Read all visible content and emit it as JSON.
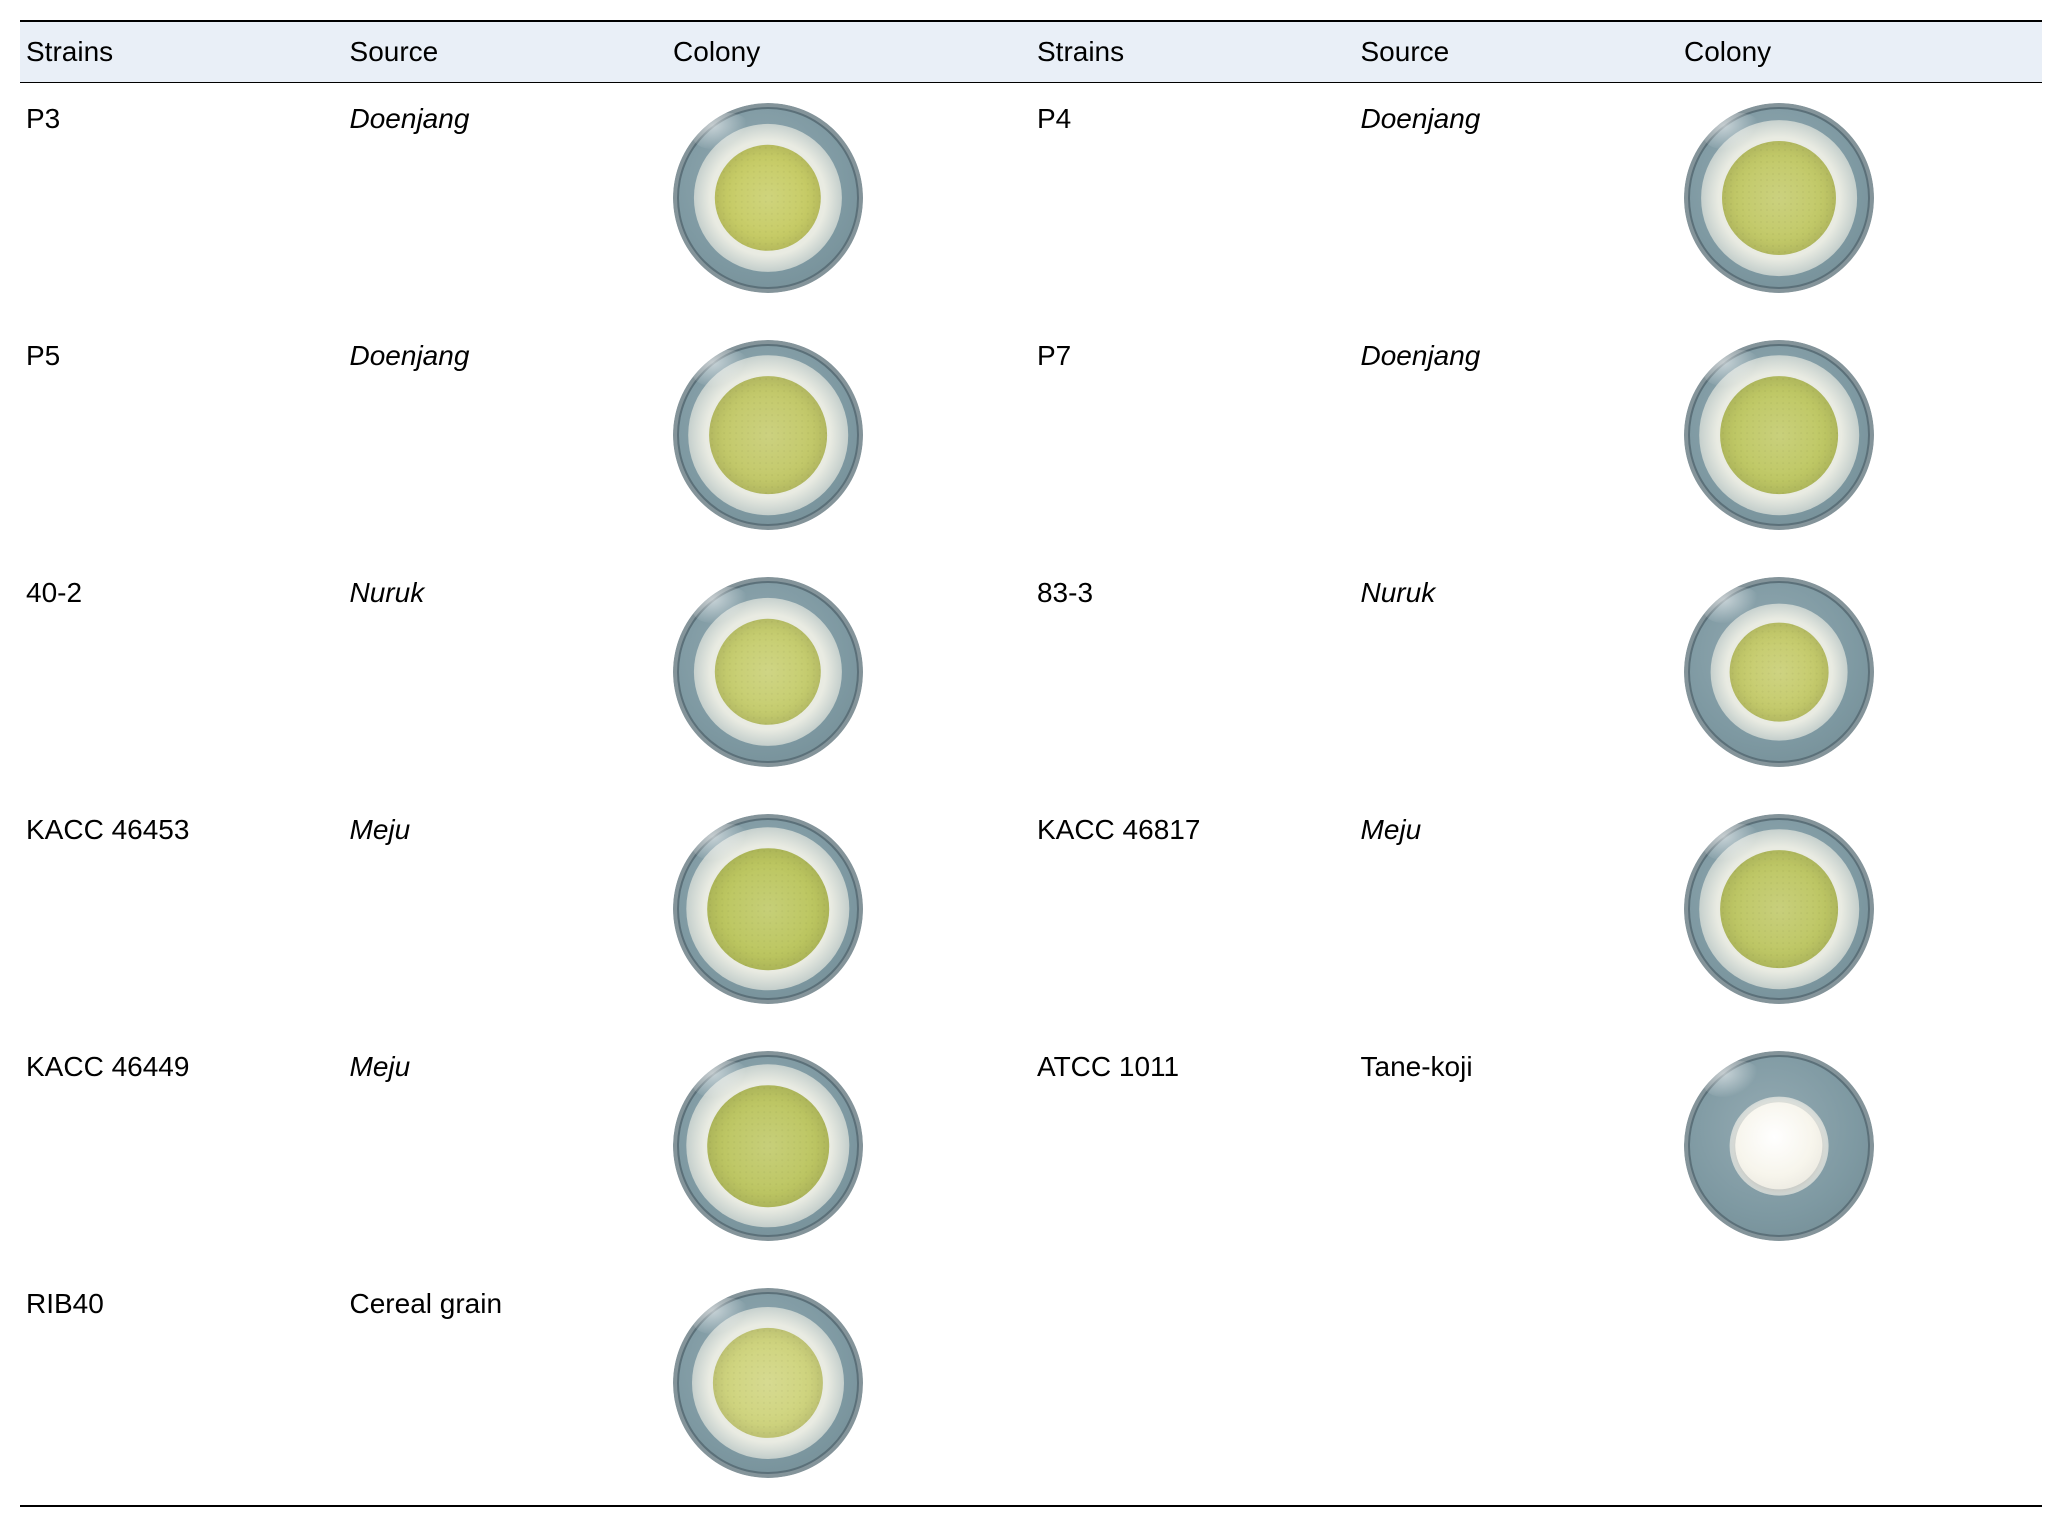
{
  "table": {
    "header": {
      "bg": "#e9eff7",
      "font_size": 28,
      "columns": [
        "Strains",
        "Source",
        "Colony",
        "Strains",
        "Source",
        "Colony"
      ]
    },
    "cell_font_size": 28,
    "border_color": "#000000",
    "rows": [
      {
        "left": {
          "strain": "P3",
          "source": "Doenjang",
          "source_italic": true,
          "dish": {
            "agar": "#7e99a2",
            "halo": "#e9ebe2",
            "colony": "#c7cc66",
            "colony_size": 0.56,
            "halo_size": 0.78,
            "rim": "#5b7079"
          }
        },
        "right": {
          "strain": "P4",
          "source": "Doenjang",
          "source_italic": true,
          "dish": {
            "agar": "#7e99a2",
            "halo": "#e9ebe2",
            "colony": "#c2c968",
            "colony_size": 0.6,
            "halo_size": 0.82,
            "rim": "#5b7079"
          }
        }
      },
      {
        "left": {
          "strain": "P5",
          "source": "Doenjang",
          "source_italic": true,
          "dish": {
            "agar": "#7e99a2",
            "halo": "#e9ebe2",
            "colony": "#c3c96a",
            "colony_size": 0.62,
            "halo_size": 0.84,
            "rim": "#5b7079"
          }
        },
        "right": {
          "strain": "P7",
          "source": "Doenjang",
          "source_italic": true,
          "dish": {
            "agar": "#7e99a2",
            "halo": "#e9ebe2",
            "colony": "#bfc865",
            "colony_size": 0.62,
            "halo_size": 0.84,
            "rim": "#5b7079"
          }
        }
      },
      {
        "left": {
          "strain": "40-2",
          "source": "Nuruk",
          "source_italic": true,
          "dish": {
            "agar": "#7e99a2",
            "halo": "#e9ebe2",
            "colony": "#c6cd6f",
            "colony_size": 0.56,
            "halo_size": 0.78,
            "rim": "#5b7079"
          }
        },
        "right": {
          "strain": "83-3",
          "source": "Nuruk",
          "source_italic": true,
          "dish": {
            "agar": "#7e99a2",
            "halo": "#e9ebe2",
            "colony": "#c5cb6c",
            "colony_size": 0.52,
            "halo_size": 0.72,
            "rim": "#5b7079"
          }
        }
      },
      {
        "left": {
          "strain": "KACC 46453",
          "source": "Meju",
          "source_italic": true,
          "dish": {
            "agar": "#7e99a2",
            "halo": "#e9ebe2",
            "colony": "#bcc660",
            "colony_size": 0.64,
            "halo_size": 0.86,
            "rim": "#5b7079"
          }
        },
        "right": {
          "strain": "KACC 46817",
          "source": "Meju",
          "source_italic": true,
          "dish": {
            "agar": "#7e99a2",
            "halo": "#e9ebe2",
            "colony": "#bec765",
            "colony_size": 0.62,
            "halo_size": 0.84,
            "rim": "#5b7079"
          }
        }
      },
      {
        "left": {
          "strain": "KACC 46449",
          "source": "Meju",
          "source_italic": true,
          "dish": {
            "agar": "#7e99a2",
            "halo": "#e9ebe2",
            "colony": "#bdc663",
            "colony_size": 0.64,
            "halo_size": 0.86,
            "rim": "#5b7079"
          }
        },
        "right": {
          "strain": "ATCC 1011",
          "source": "Tane-koji",
          "source_italic": false,
          "dish": {
            "agar": "#7e99a2",
            "halo": "#f4f2ea",
            "colony": "#f7f5ec",
            "colony_size": 0.46,
            "halo_size": 0.52,
            "rim": "#5b7079",
            "white_colony": true
          }
        }
      },
      {
        "left": {
          "strain": "RIB40",
          "source": "Cereal grain",
          "source_italic": false,
          "dish": {
            "agar": "#7e99a2",
            "halo": "#e9ebe2",
            "colony": "#cfd47e",
            "colony_size": 0.58,
            "halo_size": 0.8,
            "rim": "#5b7079"
          }
        },
        "right": null
      }
    ]
  }
}
